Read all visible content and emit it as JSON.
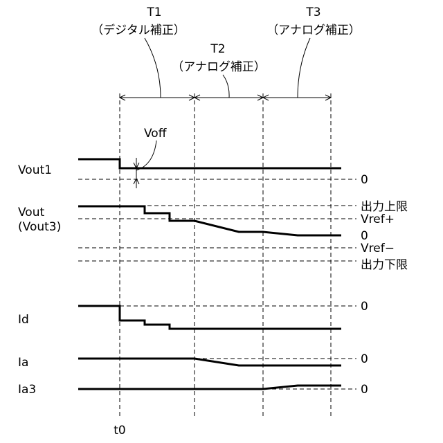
{
  "periods": [
    {
      "name": "T1",
      "desc": "（デジタル補正）"
    },
    {
      "name": "T2",
      "desc": "（アナログ補正）"
    },
    {
      "name": "T3",
      "desc": "（アナログ補正）"
    }
  ],
  "annotations": {
    "voff": "Voff",
    "t0": "t0"
  },
  "signals": {
    "vout1": {
      "label": "Vout1",
      "zero": "0"
    },
    "vout": {
      "label": "Vout",
      "label2": "(Vout3)",
      "upper_limit": "出力上限",
      "vref_plus": "Vref+",
      "zero": "0",
      "vref_minus": "Vref−",
      "lower_limit": "出力下限"
    },
    "id": {
      "label": "Id",
      "zero": "0"
    },
    "ia": {
      "label": "Ia",
      "zero": "0"
    },
    "ia3": {
      "label": "Ia3",
      "zero": "0"
    }
  }
}
